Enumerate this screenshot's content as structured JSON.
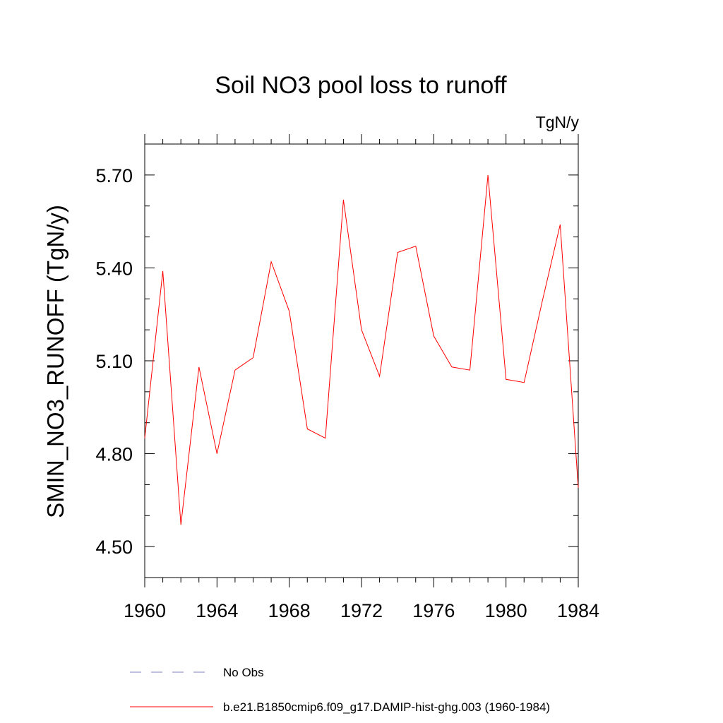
{
  "chart_data": {
    "type": "line",
    "title": "Soil NO3 pool loss to runoff",
    "units": "TgN/y",
    "ylabel": "SMIN_NO3_RUNOFF  (TgN/y)",
    "xlabel": "",
    "xlim": [
      1960,
      1984
    ],
    "ylim": [
      4.4,
      5.8
    ],
    "x_ticks": [
      1960,
      1964,
      1968,
      1972,
      1976,
      1980,
      1984
    ],
    "x_tick_labels": [
      "1960",
      "1964",
      "1968",
      "1972",
      "1976",
      "1980",
      "1984"
    ],
    "y_ticks": [
      4.5,
      4.8,
      5.1,
      5.4,
      5.7
    ],
    "y_tick_labels": [
      "4.50",
      "4.80",
      "5.10",
      "5.40",
      "5.70"
    ],
    "grid": false,
    "legend_placement": "bottom",
    "x": [
      1960,
      1961,
      1962,
      1963,
      1964,
      1965,
      1966,
      1967,
      1968,
      1969,
      1970,
      1971,
      1972,
      1973,
      1974,
      1975,
      1976,
      1977,
      1978,
      1979,
      1980,
      1981,
      1982,
      1983,
      1984
    ],
    "series": [
      {
        "name": "b.e21.B1850cmip6.f09_g17.DAMIP-hist-ghg.003 (1960-1984)",
        "color": "#ff0000",
        "style": "solid",
        "values": [
          4.85,
          5.39,
          4.57,
          5.08,
          4.8,
          5.07,
          5.11,
          5.42,
          5.26,
          4.88,
          4.85,
          5.62,
          5.2,
          5.05,
          5.45,
          5.47,
          5.18,
          5.08,
          5.07,
          5.7,
          5.04,
          5.03,
          5.29,
          5.54,
          4.69
        ]
      }
    ],
    "legend": [
      {
        "label": "No Obs",
        "color": "#8080c0",
        "style": "dashed"
      },
      {
        "label": "b.e21.B1850cmip6.f09_g17.DAMIP-hist-ghg.003 (1960-1984)",
        "color": "#ff0000",
        "style": "solid"
      }
    ]
  }
}
